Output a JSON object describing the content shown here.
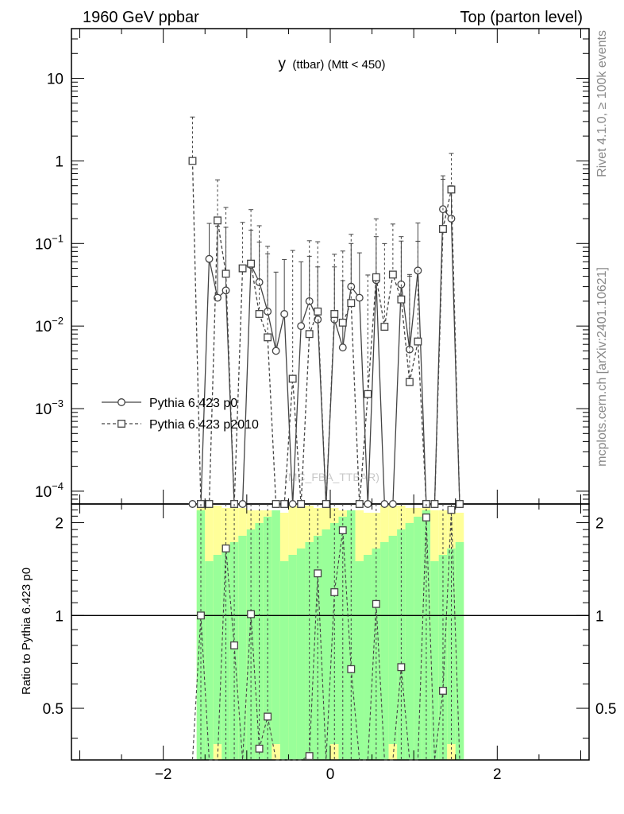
{
  "header": {
    "left": "1960 GeV ppbar",
    "right": "Top (parton level)"
  },
  "side": {
    "rivet": "Rivet 4.1.0, ≥ 100k events",
    "mcplots": "mcplots.cern.ch [arXiv:2401.10621]"
  },
  "chart_data": {
    "type": "line",
    "title_main": "y",
    "title_sub": "(ttbar) (Mtt < 450)",
    "watermark": "(MC_FBA_TTBAR)",
    "x_range": [
      -3.1,
      3.1
    ],
    "y_range": [
      7e-05,
      40
    ],
    "ratio_range": [
      0.34,
      2.3
    ],
    "ratio_ylabel": "Ratio to Pythia 6.423 p0",
    "x_ticks": [
      {
        "v": -2,
        "label": "−2"
      },
      {
        "v": 0,
        "label": "0"
      },
      {
        "v": 2,
        "label": "2"
      }
    ],
    "y_ticks": [
      {
        "v": 10,
        "base": "10",
        "exp": ""
      },
      {
        "v": 1,
        "base": "1",
        "exp": ""
      },
      {
        "v": 0.1,
        "base": "10",
        "exp": "−1"
      },
      {
        "v": 0.01,
        "base": "10",
        "exp": "−2"
      },
      {
        "v": 0.001,
        "base": "10",
        "exp": "−3"
      },
      {
        "v": 0.0001,
        "base": "10",
        "exp": "−4"
      }
    ],
    "ratio_ticks": [
      {
        "v": 2,
        "label": "2"
      },
      {
        "v": 1,
        "label": "1"
      },
      {
        "v": 0.5,
        "label": "0.5"
      }
    ],
    "legend": [
      {
        "name": "Pythia 6.423 p0",
        "marker": "circle",
        "style": "solid"
      },
      {
        "name": "Pythia 6.423 p2010",
        "marker": "square",
        "style": "dashed"
      }
    ],
    "x": [
      -1.65,
      -1.55,
      -1.45,
      -1.35,
      -1.25,
      -1.15,
      -1.05,
      -0.95,
      -0.85,
      -0.75,
      -0.65,
      -0.55,
      -0.45,
      -0.35,
      -0.25,
      -0.15,
      -0.05,
      0.05,
      0.15,
      0.25,
      0.35,
      0.45,
      0.55,
      0.65,
      0.75,
      0.85,
      0.95,
      1.05,
      1.15,
      1.25,
      1.35,
      1.45,
      1.55
    ],
    "band_edges": [
      -1.6,
      -1.5,
      -1.4,
      -1.3,
      -1.2,
      -1.1,
      -1.0,
      -0.9,
      -0.8,
      -0.7,
      -0.6,
      -0.5,
      -0.4,
      -0.3,
      -0.2,
      -0.1,
      0.0,
      0.1,
      0.2,
      0.3,
      0.4,
      0.5,
      0.6,
      0.7,
      0.8,
      0.9,
      1.0,
      1.1,
      1.2,
      1.3,
      1.4,
      1.5,
      1.6
    ],
    "series": [
      {
        "name": "Pythia 6.423 p0",
        "values": [
          null,
          null,
          0.065,
          0.022,
          0.027,
          null,
          null,
          0.055,
          0.034,
          0.015,
          0.005,
          0.014,
          null,
          0.01,
          0.02,
          0.012,
          null,
          0.012,
          0.0055,
          0.03,
          0.022,
          null,
          0.036,
          null,
          null,
          0.032,
          0.0052,
          0.047,
          null,
          null,
          0.26,
          0.2,
          null
        ],
        "err_up": [
          null,
          null,
          0.11,
          0.14,
          0.13,
          null,
          null,
          0.09,
          0.07,
          0.06,
          0.04,
          0.05,
          null,
          0.05,
          0.05,
          0.04,
          null,
          0.04,
          0.03,
          0.07,
          0.055,
          null,
          0.085,
          null,
          null,
          0.075,
          0.035,
          0.13,
          null,
          null,
          0.4,
          0.3,
          null
        ],
        "err_dn": [
          null,
          null,
          7e-05,
          7e-05,
          7e-05,
          null,
          null,
          7e-05,
          7e-05,
          7e-05,
          7e-05,
          7e-05,
          null,
          7e-05,
          7e-05,
          7e-05,
          null,
          7e-05,
          7e-05,
          7e-05,
          7e-05,
          null,
          7e-05,
          null,
          null,
          7e-05,
          7e-05,
          7e-05,
          null,
          null,
          7e-05,
          7e-05,
          null
        ]
      },
      {
        "name": "Pythia 6.423 p2010",
        "values": [
          1.0,
          null,
          null,
          0.19,
          0.043,
          null,
          0.05,
          0.057,
          0.014,
          0.0073,
          null,
          null,
          0.0023,
          null,
          0.008,
          0.015,
          null,
          0.014,
          0.011,
          0.019,
          null,
          0.0015,
          0.039,
          0.0098,
          0.042,
          0.021,
          0.0021,
          0.0065,
          null,
          null,
          0.15,
          0.45,
          null
        ],
        "err_up": [
          2.4,
          null,
          null,
          0.4,
          0.23,
          null,
          0.13,
          0.2,
          0.15,
          0.085,
          null,
          null,
          0.08,
          null,
          0.1,
          0.09,
          null,
          0.06,
          0.07,
          0.11,
          null,
          0.04,
          0.16,
          0.09,
          0.13,
          0.1,
          0.04,
          0.1,
          null,
          null,
          0.45,
          0.78,
          null
        ],
        "err_dn": [
          7e-05,
          null,
          null,
          7e-05,
          7e-05,
          null,
          7e-05,
          7e-05,
          7e-05,
          7e-05,
          null,
          null,
          7e-05,
          null,
          7e-05,
          7e-05,
          null,
          7e-05,
          7e-05,
          7e-05,
          null,
          7e-05,
          7e-05,
          7e-05,
          7e-05,
          7e-05,
          7e-05,
          7e-05,
          null,
          null,
          7e-05,
          7e-05,
          null
        ]
      }
    ],
    "ratio": {
      "x": [
        -1.55,
        -1.25,
        -1.15,
        -0.95,
        -0.85,
        -0.75,
        -0.25,
        -0.15,
        0.05,
        0.15,
        0.25,
        0.55,
        0.85,
        1.15,
        1.35,
        1.45
      ],
      "values": [
        1.0,
        1.65,
        0.8,
        1.01,
        0.37,
        0.47,
        0.35,
        1.37,
        1.19,
        1.89,
        0.67,
        1.09,
        0.68,
        2.08,
        0.57,
        2.2
      ]
    }
  }
}
